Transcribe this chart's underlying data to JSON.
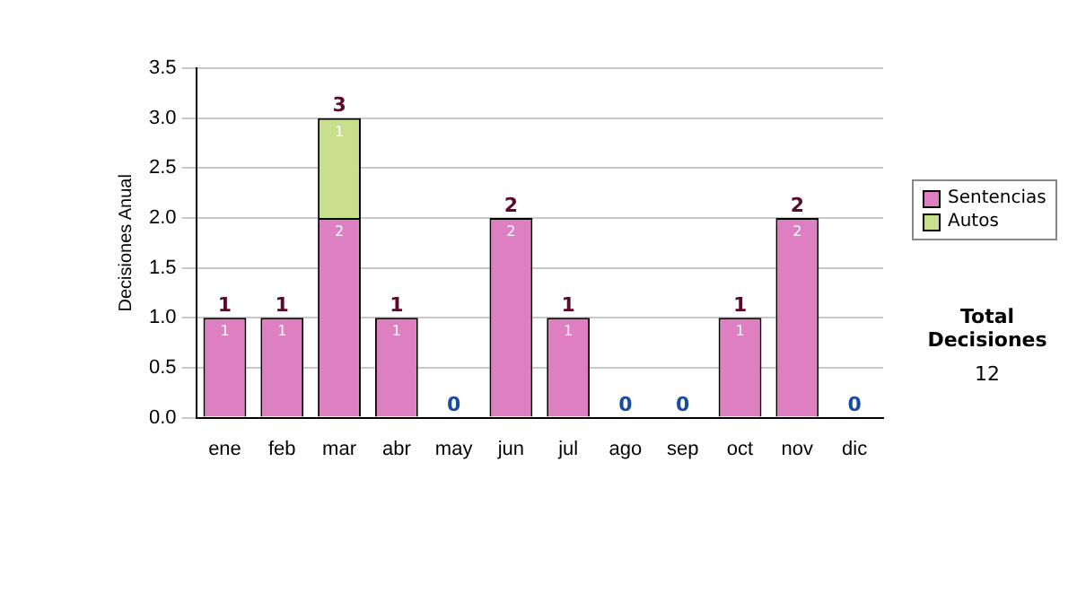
{
  "chart_data": {
    "type": "bar",
    "stacked": true,
    "ylabel": "Decisiones Anual",
    "categories": [
      "ene",
      "feb",
      "mar",
      "abr",
      "may",
      "jun",
      "jul",
      "ago",
      "sep",
      "oct",
      "nov",
      "dic"
    ],
    "series": [
      {
        "name": "Sentencias",
        "color": "#dd7fc0",
        "values": [
          1,
          1,
          2,
          1,
          0,
          2,
          1,
          0,
          0,
          1,
          2,
          0
        ],
        "value_labels": [
          "1",
          "1",
          "2",
          "1",
          null,
          "2",
          "1",
          null,
          null,
          "1",
          "2",
          null
        ]
      },
      {
        "name": "Autos",
        "color": "#c8e08e",
        "values": [
          0,
          0,
          1,
          0,
          0,
          0,
          0,
          0,
          0,
          0,
          0,
          0
        ],
        "value_labels": [
          null,
          null,
          "1",
          null,
          null,
          null,
          null,
          null,
          null,
          null,
          null,
          null
        ]
      }
    ],
    "totals": [
      "1",
      "1",
      "3",
      "1",
      "0",
      "2",
      "1",
      "0",
      "0",
      "1",
      "2",
      "0"
    ],
    "ylim": [
      0,
      3.5
    ],
    "yticks": [
      {
        "value": 0,
        "label": "0.0"
      },
      {
        "value": 0.5,
        "label": "0.5"
      },
      {
        "value": 1,
        "label": "1.0"
      },
      {
        "value": 1.5,
        "label": "1.5"
      },
      {
        "value": 2,
        "label": "2.0"
      },
      {
        "value": 2.5,
        "label": "2.5"
      },
      {
        "value": 3,
        "label": "3.0"
      },
      {
        "value": 3.5,
        "label": "3.5"
      }
    ],
    "grid": "y",
    "legend": "right",
    "annotations": [
      "Total Decisiones",
      "12"
    ]
  }
}
